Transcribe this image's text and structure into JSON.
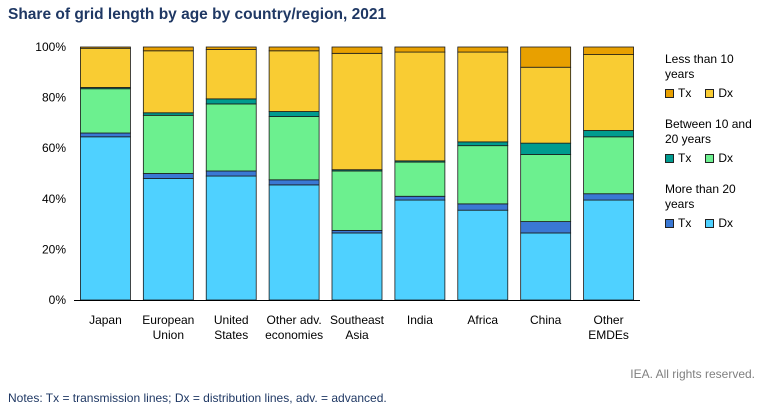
{
  "title": "Share of grid length by age by country/region, 2021",
  "notes": "Notes: Tx = transmission lines; Dx = distribution lines, adv. = advanced.",
  "credit": "IEA. All rights reserved.",
  "legend": {
    "groups": [
      {
        "title": "Less than 10 years",
        "items": [
          {
            "label": "Tx",
            "color": "#e8a000"
          },
          {
            "label": "Dx",
            "color": "#f9cc33"
          }
        ]
      },
      {
        "title": "Between 10 and 20 years",
        "items": [
          {
            "label": "Tx",
            "color": "#009b8f"
          },
          {
            "label": "Dx",
            "color": "#6cf08f"
          }
        ]
      },
      {
        "title": "More than 20 years",
        "items": [
          {
            "label": "Tx",
            "color": "#3a78d4"
          },
          {
            "label": "Dx",
            "color": "#4fd1ff"
          }
        ]
      }
    ]
  },
  "chart_data": {
    "type": "bar",
    "stacked": true,
    "categories": [
      "Japan",
      "European Union",
      "United States",
      "Other adv. economies",
      "Southeast Asia",
      "India",
      "Africa",
      "China",
      "Other EMDEs"
    ],
    "ylim": [
      0,
      100
    ],
    "yticks": [
      "0%",
      "20%",
      "40%",
      "60%",
      "80%",
      "100%"
    ],
    "grid": false,
    "legend_position": "right",
    "series": [
      {
        "name": "More than 20 years Dx",
        "color": "#4fd1ff",
        "values": [
          64.5,
          48,
          49,
          45.5,
          26.5,
          39.5,
          35.5,
          26.5,
          39.5
        ]
      },
      {
        "name": "More than 20 years Tx",
        "color": "#3a78d4",
        "values": [
          1.5,
          2,
          2,
          2,
          1,
          1.5,
          2.5,
          4.5,
          2.5
        ]
      },
      {
        "name": "Between 10 and 20 years Dx",
        "color": "#6cf08f",
        "values": [
          17.5,
          23,
          26.5,
          25,
          23.5,
          13.5,
          23,
          26.5,
          22.5
        ]
      },
      {
        "name": "Between 10 and 20 years Tx",
        "color": "#009b8f",
        "values": [
          0.5,
          1,
          2,
          2,
          0.5,
          0.5,
          1.5,
          4.5,
          2.5
        ]
      },
      {
        "name": "Less than 10 years Dx",
        "color": "#f9cc33",
        "values": [
          15.5,
          24.5,
          19.5,
          24,
          46,
          43,
          35.5,
          30,
          30
        ]
      },
      {
        "name": "Less than 10 years Tx",
        "color": "#e8a000",
        "values": [
          0.5,
          1.5,
          1,
          1.5,
          2.5,
          2,
          2,
          8,
          3
        ]
      }
    ]
  }
}
